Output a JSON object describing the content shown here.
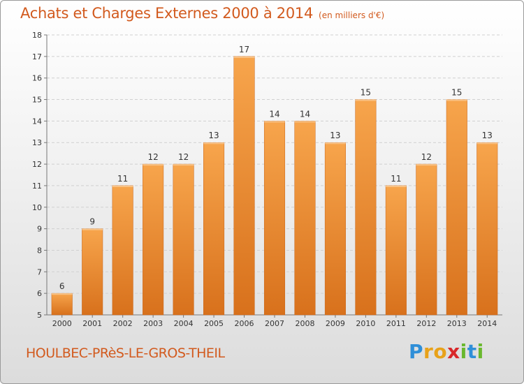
{
  "title": "Achats et Charges Externes 2000 à 2014",
  "unit": "(en milliers d'€)",
  "commune": "HOULBEC-PRèS-LE-GROS-THEIL",
  "logo": {
    "letters": [
      "P",
      "r",
      "o",
      "x",
      "i",
      "t",
      "i"
    ],
    "colors": [
      "#2f8fd8",
      "#e8a21a",
      "#e8a21a",
      "#d8282a",
      "#6ab82e",
      "#2f8fd8",
      "#6ab82e"
    ]
  },
  "chart_data": {
    "type": "bar",
    "title": "Achats et Charges Externes 2000 à 2014",
    "subtitle": "(en milliers d'€)",
    "categories": [
      "2000",
      "2001",
      "2002",
      "2003",
      "2004",
      "2005",
      "2006",
      "2007",
      "2008",
      "2009",
      "2010",
      "2011",
      "2012",
      "2013",
      "2014"
    ],
    "values": [
      6,
      9,
      11,
      12,
      12,
      13,
      17,
      14,
      14,
      13,
      15,
      11,
      12,
      15,
      13
    ],
    "ylim": [
      5,
      18
    ],
    "yticks": [
      5,
      6,
      7,
      8,
      9,
      10,
      11,
      12,
      13,
      14,
      15,
      16,
      17,
      18
    ],
    "grid": true,
    "bar_color": "#f0902e",
    "xlabel": "",
    "ylabel": ""
  }
}
